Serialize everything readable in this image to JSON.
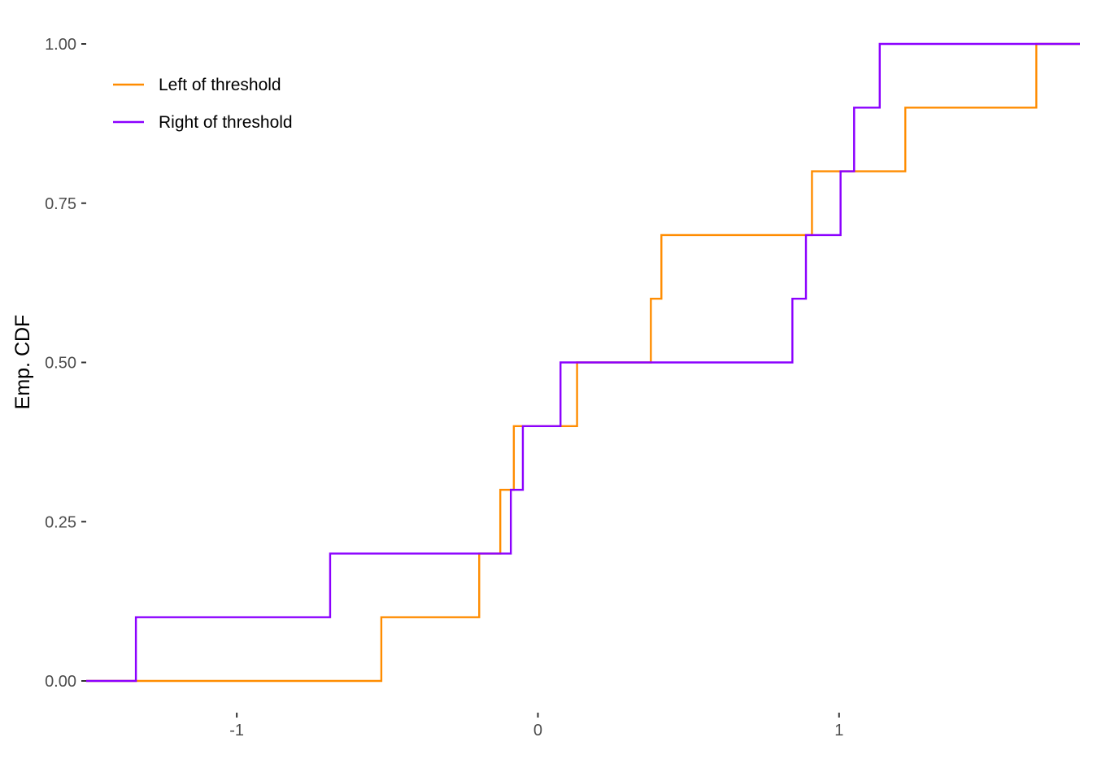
{
  "chart_data": {
    "type": "line",
    "step": true,
    "xlabel": "",
    "ylabel": "Emp. CDF",
    "xlim": [
      -1.5,
      1.8
    ],
    "ylim": [
      0,
      1
    ],
    "x_ticks": [
      {
        "value": -1,
        "label": "-1"
      },
      {
        "value": 0,
        "label": "0"
      },
      {
        "value": 1,
        "label": "1"
      }
    ],
    "y_ticks": [
      {
        "value": 0,
        "label": "0.00"
      },
      {
        "value": 0.25,
        "label": "0.25"
      },
      {
        "value": 0.5,
        "label": "0.50"
      },
      {
        "value": 0.75,
        "label": "0.75"
      },
      {
        "value": 1,
        "label": "1.00"
      }
    ],
    "grid": false,
    "legend": "top-left",
    "series": [
      {
        "name": "Left of threshold",
        "color": "#FF8C00",
        "points": [
          [
            -0.52,
            0.1
          ],
          [
            -0.195,
            0.2
          ],
          [
            -0.125,
            0.3
          ],
          [
            -0.08,
            0.4
          ],
          [
            0.13,
            0.5
          ],
          [
            0.375,
            0.6
          ],
          [
            0.41,
            0.7
          ],
          [
            0.91,
            0.8
          ],
          [
            1.22,
            0.9
          ],
          [
            1.655,
            1.0
          ]
        ]
      },
      {
        "name": "Right of threshold",
        "color": "#8B00FF",
        "points": [
          [
            -1.335,
            0.1
          ],
          [
            -0.69,
            0.2
          ],
          [
            -0.09,
            0.3
          ],
          [
            -0.05,
            0.4
          ],
          [
            0.075,
            0.5
          ],
          [
            0.845,
            0.6
          ],
          [
            0.89,
            0.7
          ],
          [
            1.005,
            0.8
          ],
          [
            1.05,
            0.9
          ],
          [
            1.135,
            1.0
          ]
        ]
      }
    ]
  }
}
